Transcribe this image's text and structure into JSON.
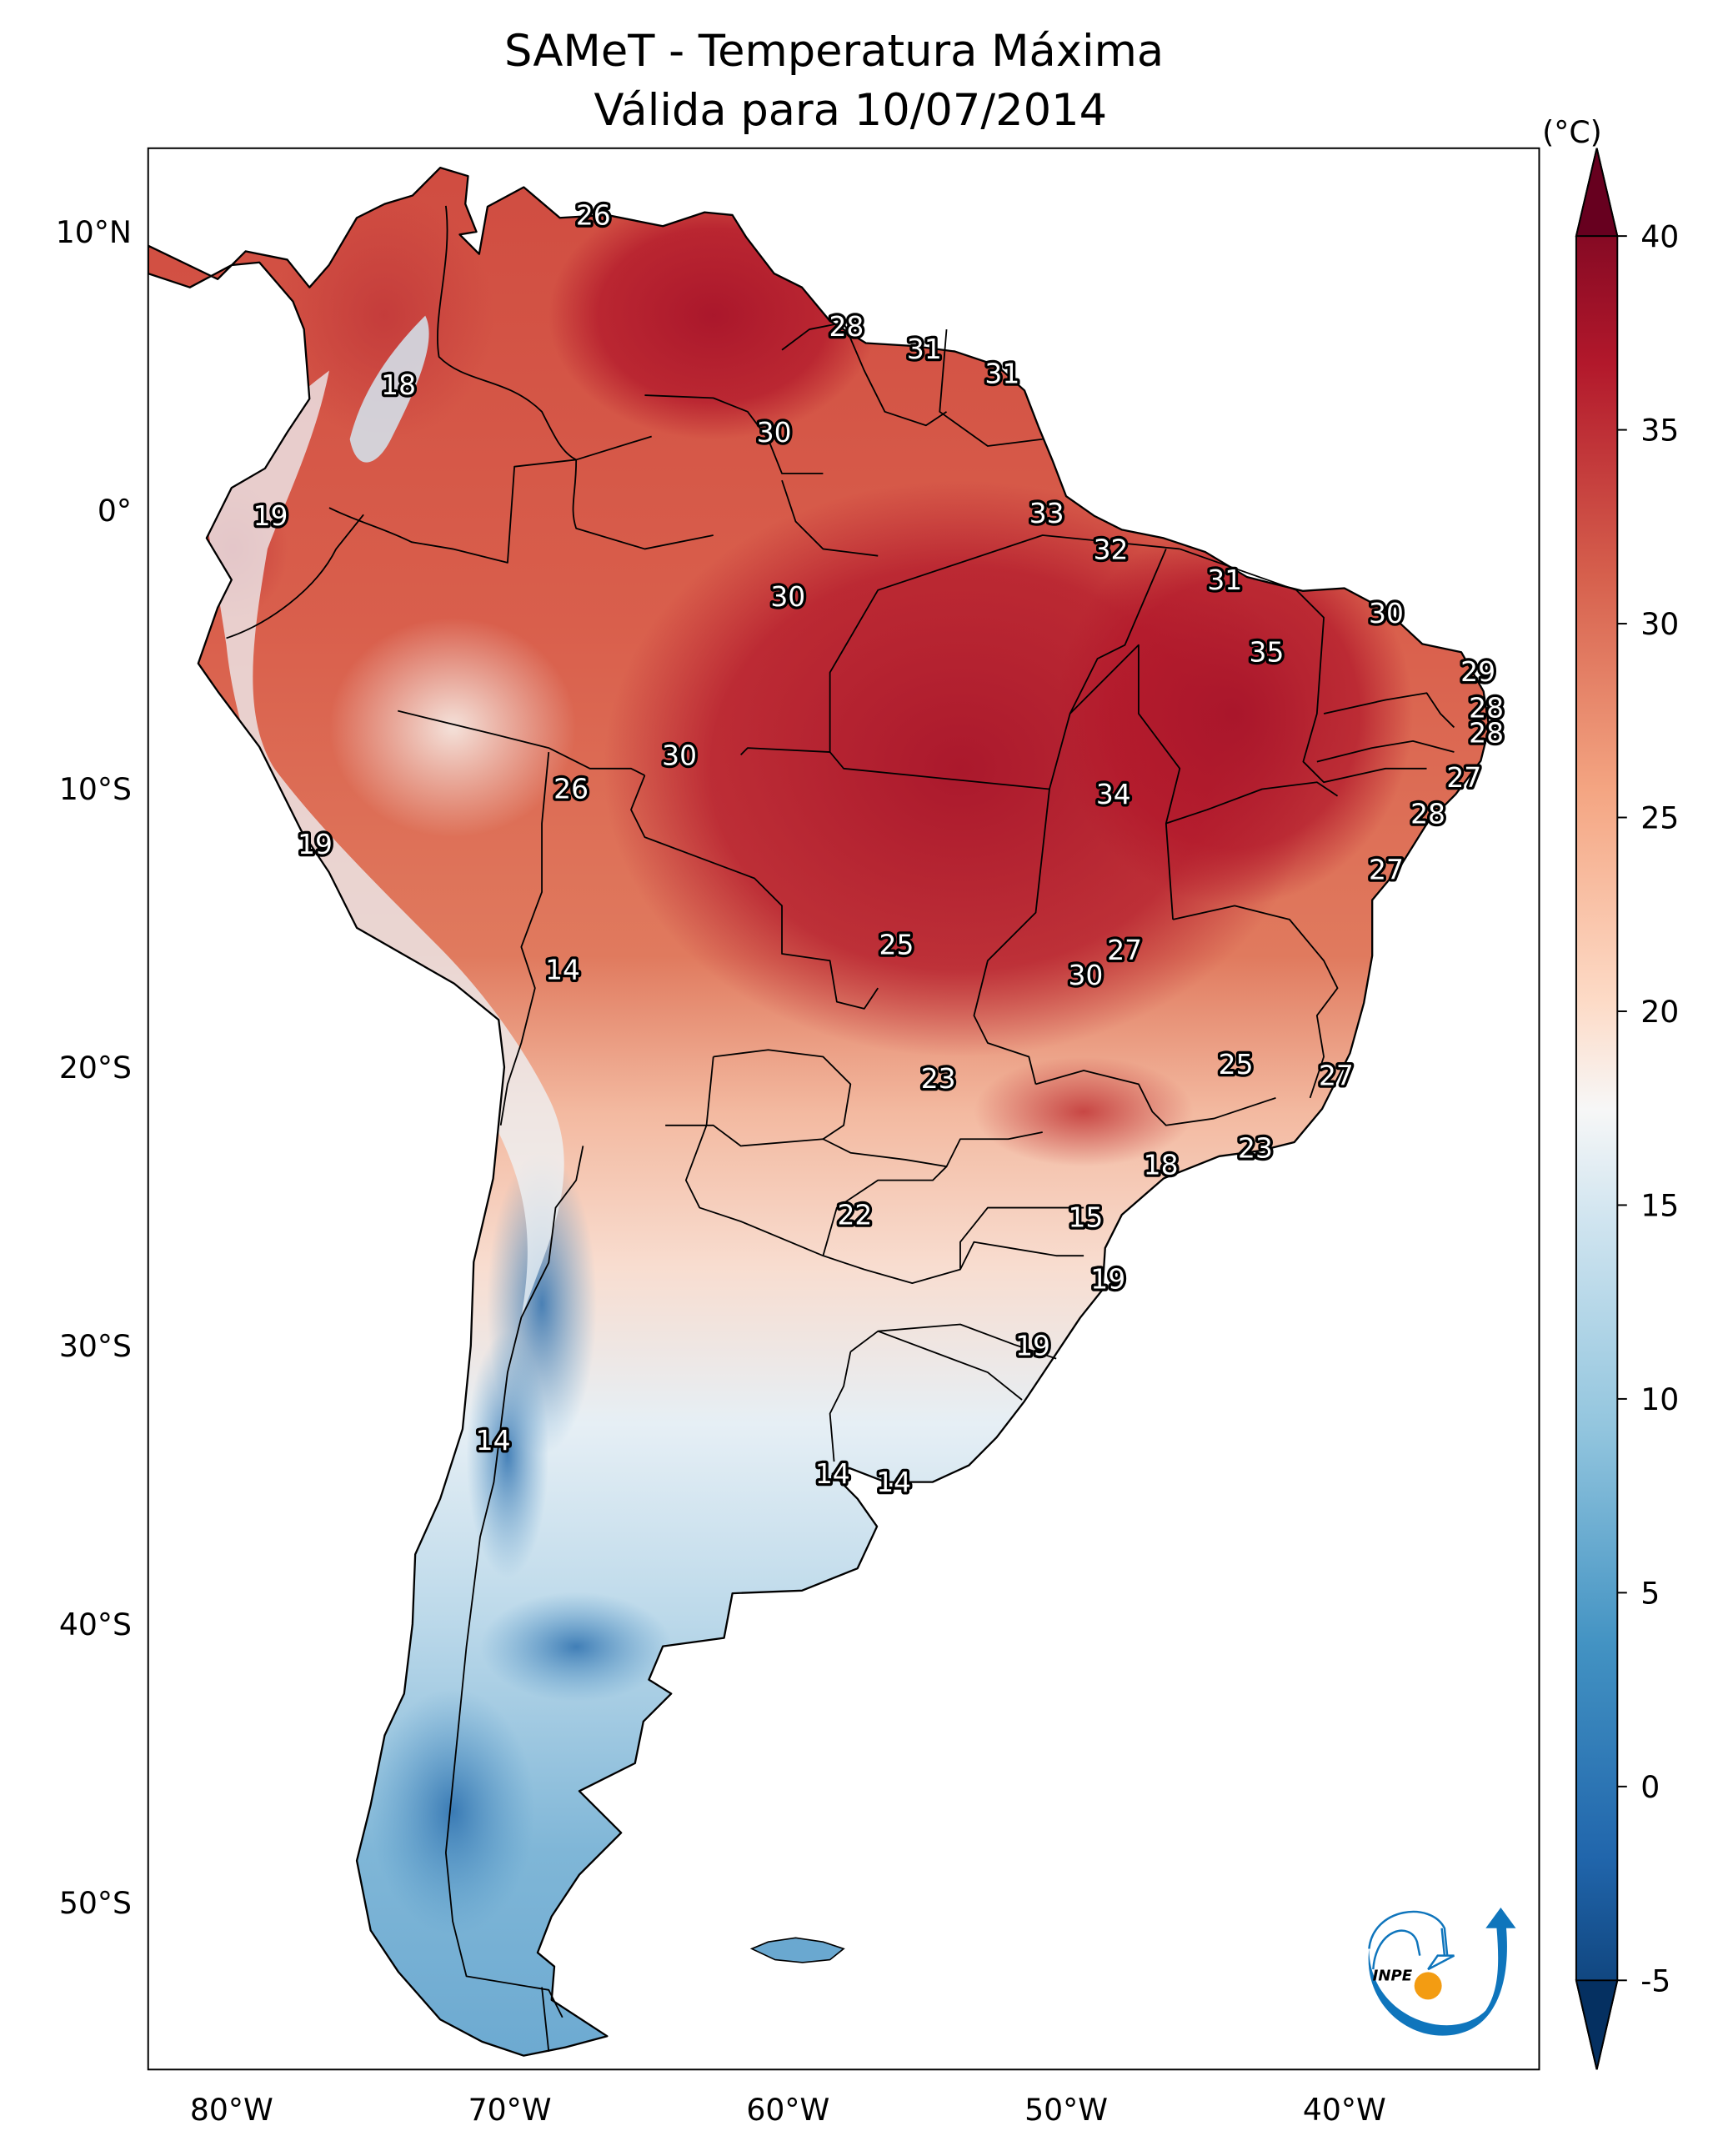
{
  "title": {
    "line1": "SAMeT - Temperatura Máxima",
    "line2": "Válida para 10/07/2014"
  },
  "map": {
    "type": "filled-contour map",
    "region": "South America",
    "variable": "Maximum temperature",
    "date": "10/07/2014",
    "lon_range": [
      -83,
      -33
    ],
    "lat_range": [
      -56,
      13
    ],
    "lat_ticks": [
      {
        "value": 10,
        "label": "10°N"
      },
      {
        "value": 0,
        "label": "0°"
      },
      {
        "value": -10,
        "label": "10°S"
      },
      {
        "value": -20,
        "label": "20°S"
      },
      {
        "value": -30,
        "label": "30°S"
      },
      {
        "value": -40,
        "label": "40°S"
      },
      {
        "value": -50,
        "label": "50°S"
      }
    ],
    "lon_ticks": [
      {
        "value": -80,
        "label": "80°W"
      },
      {
        "value": -70,
        "label": "70°W"
      },
      {
        "value": -60,
        "label": "60°W"
      },
      {
        "value": -50,
        "label": "50°W"
      },
      {
        "value": -40,
        "label": "40°W"
      }
    ],
    "station_values": [
      {
        "lon": -67.0,
        "lat": 10.6,
        "value": "26"
      },
      {
        "lon": -74.0,
        "lat": 4.5,
        "value": "18"
      },
      {
        "lon": -57.9,
        "lat": 6.6,
        "value": "28"
      },
      {
        "lon": -55.1,
        "lat": 5.8,
        "value": "31"
      },
      {
        "lon": -52.3,
        "lat": 4.9,
        "value": "31"
      },
      {
        "lon": -60.5,
        "lat": 2.8,
        "value": "30"
      },
      {
        "lon": -78.6,
        "lat": -0.2,
        "value": "19"
      },
      {
        "lon": -50.7,
        "lat": -0.1,
        "value": "33"
      },
      {
        "lon": -48.4,
        "lat": -1.4,
        "value": "32"
      },
      {
        "lon": -60.0,
        "lat": -3.1,
        "value": "30"
      },
      {
        "lon": -44.3,
        "lat": -2.5,
        "value": "31"
      },
      {
        "lon": -38.5,
        "lat": -3.7,
        "value": "30"
      },
      {
        "lon": -42.8,
        "lat": -5.1,
        "value": "35"
      },
      {
        "lon": -35.2,
        "lat": -5.8,
        "value": "29"
      },
      {
        "lon": -34.9,
        "lat": -7.1,
        "value": "28"
      },
      {
        "lon": -34.9,
        "lat": -8.0,
        "value": "28"
      },
      {
        "lon": -35.7,
        "lat": -9.6,
        "value": "27"
      },
      {
        "lon": -63.9,
        "lat": -8.8,
        "value": "30"
      },
      {
        "lon": -67.8,
        "lat": -10.0,
        "value": "26"
      },
      {
        "lon": -48.3,
        "lat": -10.2,
        "value": "34"
      },
      {
        "lon": -37.0,
        "lat": -10.9,
        "value": "28"
      },
      {
        "lon": -77.0,
        "lat": -12.0,
        "value": "19"
      },
      {
        "lon": -38.5,
        "lat": -12.9,
        "value": "27"
      },
      {
        "lon": -56.1,
        "lat": -15.6,
        "value": "25"
      },
      {
        "lon": -47.9,
        "lat": -15.8,
        "value": "27"
      },
      {
        "lon": -49.3,
        "lat": -16.7,
        "value": "30"
      },
      {
        "lon": -68.1,
        "lat": -16.5,
        "value": "14"
      },
      {
        "lon": -54.6,
        "lat": -20.4,
        "value": "23"
      },
      {
        "lon": -43.9,
        "lat": -19.9,
        "value": "25"
      },
      {
        "lon": -40.3,
        "lat": -20.3,
        "value": "27"
      },
      {
        "lon": -43.2,
        "lat": -22.9,
        "value": "23"
      },
      {
        "lon": -46.6,
        "lat": -23.5,
        "value": "18"
      },
      {
        "lon": -57.6,
        "lat": -25.3,
        "value": "22"
      },
      {
        "lon": -49.3,
        "lat": -25.4,
        "value": "15"
      },
      {
        "lon": -48.5,
        "lat": -27.6,
        "value": "19"
      },
      {
        "lon": -51.2,
        "lat": -30.0,
        "value": "19"
      },
      {
        "lon": -70.6,
        "lat": -33.4,
        "value": "14"
      },
      {
        "lon": -58.4,
        "lat": -34.6,
        "value": "14"
      },
      {
        "lon": -56.2,
        "lat": -34.9,
        "value": "14"
      }
    ]
  },
  "colorbar": {
    "unit_label": "(°C)",
    "min": -5,
    "max": 40,
    "extend": "both",
    "colormap": "RdBu_r",
    "ticks": [
      "40",
      "35",
      "30",
      "25",
      "20",
      "15",
      "10",
      "5",
      "0",
      "-5"
    ],
    "colors": {
      "-5": "#053061",
      "0": "#2166ac",
      "5": "#4393c3",
      "10": "#92c5de",
      "15": "#d1e5f0",
      "17.5": "#f7f7f7",
      "20": "#fddbc7",
      "25": "#f4a582",
      "30": "#d6604d",
      "35": "#b2182b",
      "40": "#67001f"
    }
  },
  "logo": {
    "text": "INPE",
    "colors": {
      "arrow": "#0f75bc",
      "sun": "#f39c12",
      "text": "#000000"
    }
  }
}
